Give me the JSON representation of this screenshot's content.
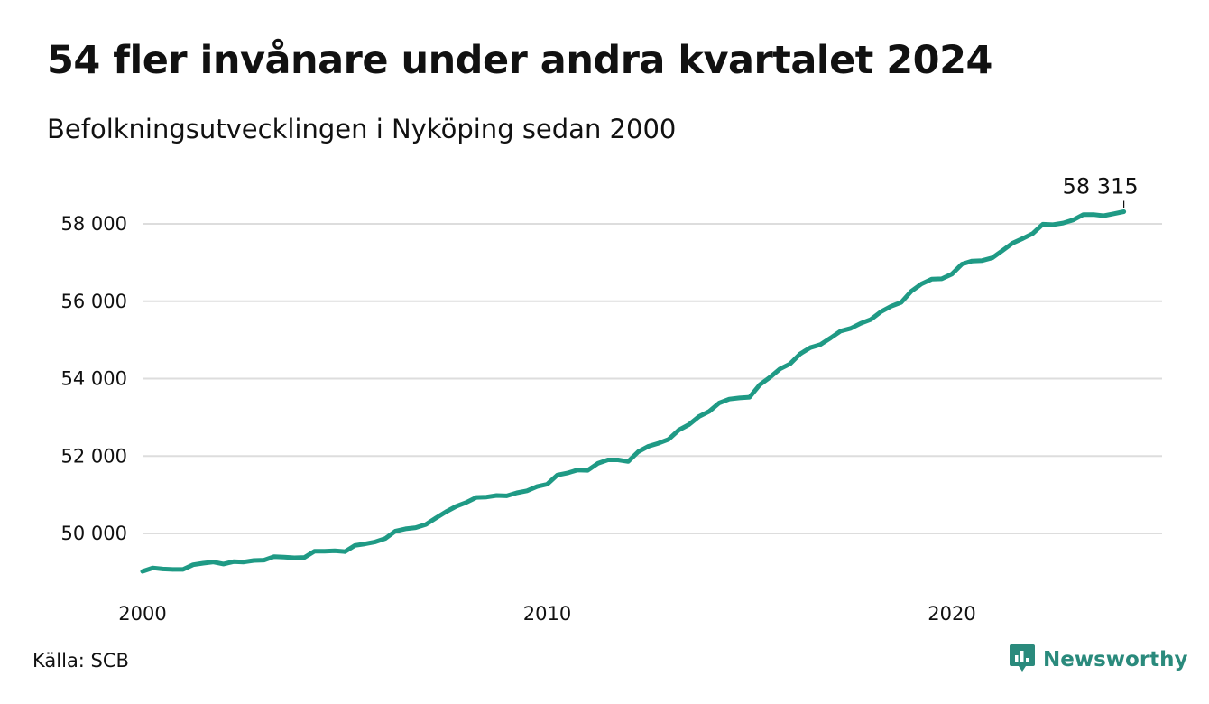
{
  "title": "54 fler invånare under andra kvartalet 2024",
  "subtitle": "Befolkningsutvecklingen i Nyköping sedan 2000",
  "source": "Källa: SCB",
  "brand": {
    "name": "Newsworthy",
    "icon": "newsworthy-logo-icon",
    "color": "#2a8a7c"
  },
  "chart_data": {
    "type": "line",
    "line_color": "#1f9a85",
    "grid": true,
    "x_ticks": [
      "2000",
      "2010",
      "2020"
    ],
    "y_ticks": [
      "50 000",
      "52 000",
      "54 000",
      "56 000",
      "58 000"
    ],
    "ylim": [
      48700,
      59000
    ],
    "end_label": "58 315",
    "series": [
      {
        "x": [
          "2000-Q1",
          "2000-Q2",
          "2000-Q3",
          "2000-Q4",
          "2001-Q1",
          "2001-Q2",
          "2001-Q3",
          "2001-Q4",
          "2002-Q1",
          "2002-Q2",
          "2002-Q3",
          "2002-Q4",
          "2003-Q1",
          "2003-Q2",
          "2003-Q3",
          "2003-Q4",
          "2004-Q1",
          "2004-Q2",
          "2004-Q3",
          "2004-Q4",
          "2005-Q1",
          "2005-Q2",
          "2005-Q3",
          "2005-Q4",
          "2006-Q1",
          "2006-Q2",
          "2006-Q3",
          "2006-Q4",
          "2007-Q1",
          "2007-Q2",
          "2007-Q3",
          "2007-Q4",
          "2008-Q1",
          "2008-Q2",
          "2008-Q3",
          "2008-Q4",
          "2009-Q1",
          "2009-Q2",
          "2009-Q3",
          "2009-Q4",
          "2010-Q1",
          "2010-Q2",
          "2010-Q3",
          "2010-Q4",
          "2011-Q1",
          "2011-Q2",
          "2011-Q3",
          "2011-Q4",
          "2012-Q1",
          "2012-Q2",
          "2012-Q3",
          "2012-Q4",
          "2013-Q1",
          "2013-Q2",
          "2013-Q3",
          "2013-Q4",
          "2014-Q1",
          "2014-Q2",
          "2014-Q3",
          "2014-Q4",
          "2015-Q1",
          "2015-Q2",
          "2015-Q3",
          "2015-Q4",
          "2016-Q1",
          "2016-Q2",
          "2016-Q3",
          "2016-Q4",
          "2017-Q1",
          "2017-Q2",
          "2017-Q3",
          "2017-Q4",
          "2018-Q1",
          "2018-Q2",
          "2018-Q3",
          "2018-Q4",
          "2019-Q1",
          "2019-Q2",
          "2019-Q3",
          "2019-Q4",
          "2020-Q1",
          "2020-Q2",
          "2020-Q3",
          "2020-Q4",
          "2021-Q1",
          "2021-Q2",
          "2021-Q3",
          "2021-Q4",
          "2022-Q1",
          "2022-Q2",
          "2022-Q3",
          "2022-Q4",
          "2023-Q1",
          "2023-Q2",
          "2023-Q3",
          "2023-Q4",
          "2024-Q1",
          "2024-Q2"
        ],
        "values": [
          49020,
          49110,
          49080,
          49070,
          49070,
          49190,
          49230,
          49260,
          49210,
          49270,
          49260,
          49300,
          49310,
          49400,
          49390,
          49370,
          49380,
          49540,
          49540,
          49550,
          49530,
          49690,
          49730,
          49780,
          49870,
          50060,
          50120,
          50150,
          50230,
          50400,
          50560,
          50700,
          50800,
          50930,
          50940,
          50980,
          50970,
          51050,
          51100,
          51210,
          51270,
          51510,
          51560,
          51640,
          51630,
          51810,
          51900,
          51900,
          51860,
          52110,
          52250,
          52330,
          52430,
          52670,
          52810,
          53020,
          53150,
          53370,
          53470,
          53500,
          53520,
          53840,
          54030,
          54250,
          54380,
          54640,
          54800,
          54880,
          55050,
          55230,
          55300,
          55430,
          55530,
          55730,
          55870,
          55970,
          56260,
          56450,
          56570,
          56580,
          56700,
          56960,
          57040,
          57050,
          57120,
          57310,
          57500,
          57620,
          57750,
          57990,
          57980,
          58020,
          58100,
          58240,
          58240,
          58210,
          58261,
          58315
        ]
      }
    ]
  }
}
